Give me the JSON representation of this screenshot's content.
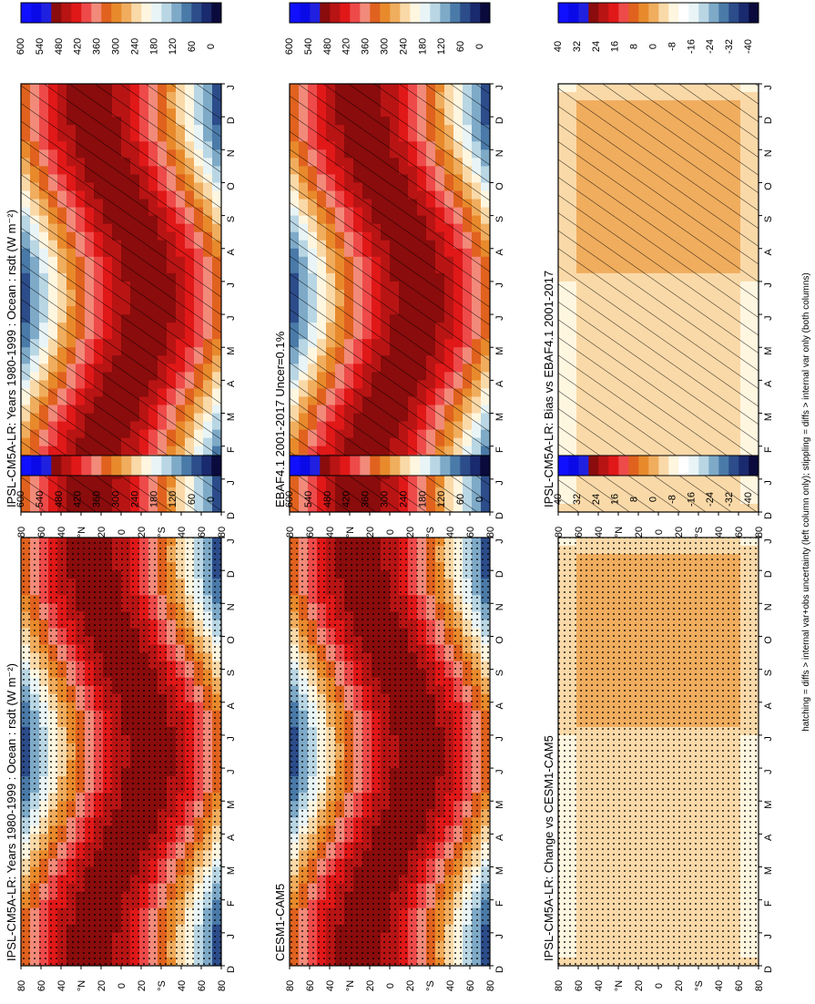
{
  "footnote": "hatching = diffs > internal var+obs uncertainty (left column only); stippling = diffs > internal var only (both columns)",
  "month_ticks": [
    "D",
    "J",
    "F",
    "M",
    "A",
    "M",
    "J",
    "J",
    "A",
    "S",
    "O",
    "N",
    "D",
    "J"
  ],
  "lat_ticks": [
    "80",
    "60",
    "40",
    "°N",
    "20",
    "0",
    "20",
    "°S",
    "40",
    "60",
    "80"
  ],
  "colorbars": {
    "absolute": {
      "labels": [
        "0",
        "60",
        "120",
        "180",
        "240",
        "300",
        "360",
        "420",
        "480",
        "540",
        "600"
      ],
      "colors": [
        "#0a0a3c",
        "#1a2a6e",
        "#2c4c8a",
        "#4a7aa8",
        "#7eaac8",
        "#b9d6e4",
        "#e8f4f6",
        "#fff6e0",
        "#fad9a8",
        "#f0ad5e",
        "#e88a2c",
        "#e0621e",
        "#f28a7a",
        "#ee4a4a",
        "#e01818",
        "#b81414",
        "#8a0c0c",
        "#2020e0",
        "#0a0ae8",
        "#1010ff"
      ]
    },
    "difference": {
      "labels": [
        "-40",
        "-32",
        "-24",
        "-16",
        "-8",
        "0",
        "8",
        "16",
        "24",
        "32",
        "40"
      ],
      "colors": [
        "#0a0a3c",
        "#1a2a6e",
        "#2c4c8a",
        "#4a7aa8",
        "#7eaac8",
        "#b9d6e4",
        "#e8f4f6",
        "#ffffff",
        "#fff6e0",
        "#fad9a8",
        "#f0ad5e",
        "#e88a2c",
        "#e0621e",
        "#ee4a4a",
        "#e01818",
        "#b81414",
        "#8a0c0c",
        "#2020e0",
        "#0a0ae8",
        "#1010ff"
      ]
    }
  },
  "chart_data": [
    {
      "type": "heatmap",
      "title": "IPSL-CM5A-LR: Years 1980-1999 : Ocean : rsdt (W m⁻²)",
      "field": "absolute",
      "overlay": "hatching",
      "x": [
        "D",
        "J",
        "F",
        "M",
        "A",
        "M",
        "J",
        "J",
        "A",
        "S",
        "O",
        "N",
        "D",
        "J"
      ],
      "y": [
        "80N",
        "60N",
        "40N",
        "20N",
        "0",
        "20S",
        "40S",
        "60S",
        "80S"
      ],
      "colorbar_range": [
        0,
        600
      ]
    },
    {
      "type": "heatmap",
      "title": "IPSL-CM5A-LR: Years 1980-1999 : Ocean : rsdt (W m⁻²)",
      "field": "absolute",
      "overlay": "stippling",
      "x": [
        "D",
        "J",
        "F",
        "M",
        "A",
        "M",
        "J",
        "J",
        "A",
        "S",
        "O",
        "N",
        "D",
        "J"
      ],
      "y": [
        "80N",
        "60N",
        "40N",
        "20N",
        "0",
        "20S",
        "40S",
        "60S",
        "80S"
      ],
      "colorbar_range": [
        0,
        600
      ]
    },
    {
      "type": "heatmap",
      "title": "EBAF4.1 2001-2017 Uncer=0.1%",
      "field": "absolute",
      "overlay": "hatching",
      "x": [
        "D",
        "J",
        "F",
        "M",
        "A",
        "M",
        "J",
        "J",
        "A",
        "S",
        "O",
        "N",
        "D",
        "J"
      ],
      "y": [
        "80N",
        "60N",
        "40N",
        "20N",
        "0",
        "20S",
        "40S",
        "60S",
        "80S"
      ],
      "colorbar_range": [
        0,
        600
      ]
    },
    {
      "type": "heatmap",
      "title": "CESM1-CAM5",
      "field": "absolute",
      "overlay": "stippling",
      "x": [
        "D",
        "J",
        "F",
        "M",
        "A",
        "M",
        "J",
        "J",
        "A",
        "S",
        "O",
        "N",
        "D",
        "J"
      ],
      "y": [
        "80N",
        "60N",
        "40N",
        "20N",
        "0",
        "20S",
        "40S",
        "60S",
        "80S"
      ],
      "colorbar_range": [
        0,
        600
      ]
    },
    {
      "type": "heatmap",
      "title": "IPSL-CM5A-LR: Bias vs EBAF4.1 2001-2017",
      "field": "difference",
      "overlay": "hatching",
      "x": [
        "D",
        "J",
        "F",
        "M",
        "A",
        "M",
        "J",
        "J",
        "A",
        "S",
        "O",
        "N",
        "D",
        "J"
      ],
      "y": [
        "80N",
        "60N",
        "40N",
        "20N",
        "0",
        "20S",
        "40S",
        "60S",
        "80S"
      ],
      "colorbar_range": [
        -40,
        40
      ]
    },
    {
      "type": "heatmap",
      "title": "IPSL-CM5A-LR: Change vs CESM1-CAM5",
      "field": "difference",
      "overlay": "stippling",
      "x": [
        "D",
        "J",
        "F",
        "M",
        "A",
        "M",
        "J",
        "J",
        "A",
        "S",
        "O",
        "N",
        "D",
        "J"
      ],
      "y": [
        "80N",
        "60N",
        "40N",
        "20N",
        "0",
        "20S",
        "40S",
        "60S",
        "80S"
      ],
      "colorbar_range": [
        -40,
        40
      ]
    }
  ]
}
